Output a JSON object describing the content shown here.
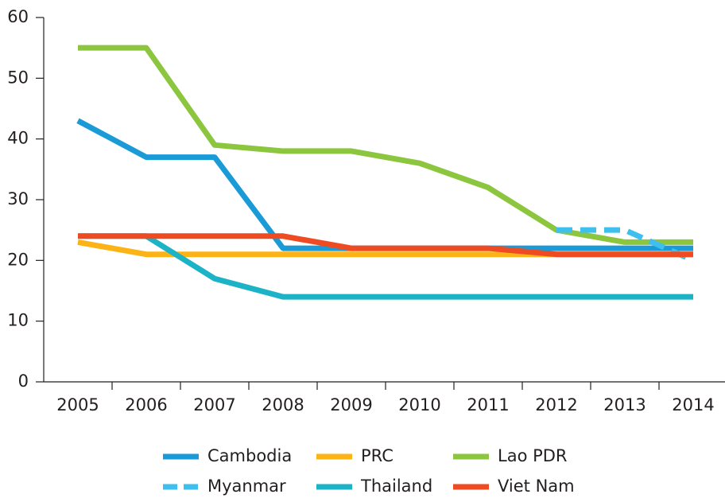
{
  "chart_data": {
    "type": "line",
    "categories": [
      "2005",
      "2006",
      "2007",
      "2008",
      "2009",
      "2010",
      "2011",
      "2012",
      "2013",
      "2014"
    ],
    "series": [
      {
        "name": "Cambodia",
        "color": "#1a9bd7",
        "values": [
          43,
          37,
          37,
          22,
          22,
          22,
          22,
          22,
          22,
          22
        ]
      },
      {
        "name": "PRC",
        "color": "#fbb316",
        "values": [
          23,
          21,
          21,
          21,
          21,
          21,
          21,
          21,
          21,
          21
        ]
      },
      {
        "name": "Lao PDR",
        "color": "#8cc63f",
        "values": [
          55,
          55,
          39,
          38,
          38,
          36,
          32,
          25,
          23,
          23
        ]
      },
      {
        "name": "Myanmar",
        "color": "#3fbfed",
        "dashed": true,
        "values": [
          null,
          null,
          null,
          null,
          null,
          null,
          null,
          25,
          25,
          20
        ]
      },
      {
        "name": "Thailand",
        "color": "#1cb3c7",
        "values": [
          24,
          24,
          17,
          14,
          14,
          14,
          14,
          14,
          14,
          14
        ]
      },
      {
        "name": "Viet Nam",
        "color": "#ef4b23",
        "values": [
          24,
          24,
          24,
          24,
          22,
          22,
          22,
          21,
          21,
          21
        ]
      }
    ],
    "ylim": [
      0,
      60
    ],
    "yticks": [
      0,
      10,
      20,
      30,
      40,
      50,
      60
    ],
    "grid": false,
    "legend": "bottom"
  }
}
